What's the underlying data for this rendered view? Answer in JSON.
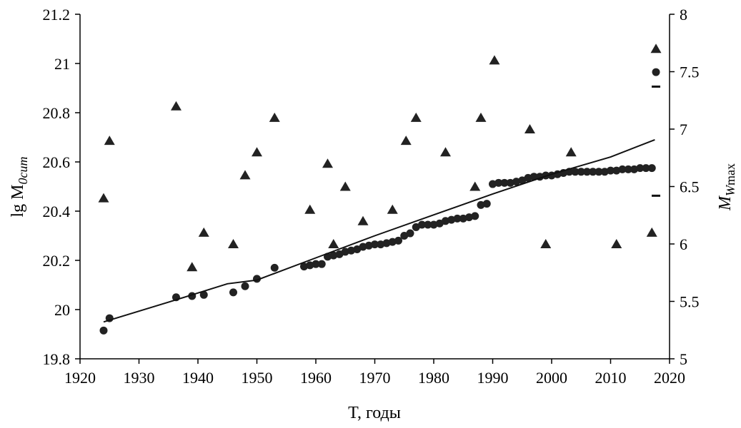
{
  "chart_data": {
    "type": "scatter",
    "xlabel": "T, годы",
    "ylabel_left": "lg M",
    "ylabel_left_sub": "0cum",
    "ylabel_right": "M",
    "ylabel_right_sub_italic": "W",
    "ylabel_right_sub": "max",
    "xlim": [
      1920,
      2020
    ],
    "ylim_left": [
      19.8,
      21.2
    ],
    "ylim_right": [
      5,
      8
    ],
    "x_ticks": [
      "1920",
      "1930",
      "1940",
      "1950",
      "1960",
      "1970",
      "1980",
      "1990",
      "2000",
      "2010",
      "2020"
    ],
    "y_left_ticks": [
      "19.8",
      "20",
      "20.2",
      "20.4",
      "20.6",
      "20.8",
      "21",
      "21.2"
    ],
    "y_right_ticks": [
      "5",
      "5.5",
      "6",
      "6.5",
      "7",
      "7.5",
      "8"
    ],
    "series": [
      {
        "axis": "right",
        "marker": "triangle",
        "points": [
          [
            1924,
            6.4
          ],
          [
            1925,
            6.9
          ],
          [
            1936.3,
            7.2
          ],
          [
            1939,
            5.8
          ],
          [
            1941,
            6.1
          ],
          [
            1946,
            6.0
          ],
          [
            1948,
            6.6
          ],
          [
            1950,
            6.8
          ],
          [
            1953,
            7.1
          ],
          [
            1959,
            6.3
          ],
          [
            1962,
            6.7
          ],
          [
            1963,
            6.0
          ],
          [
            1965,
            6.5
          ],
          [
            1968,
            6.2
          ],
          [
            1973,
            6.3
          ],
          [
            1975.3,
            6.9
          ],
          [
            1977,
            7.1
          ],
          [
            1982,
            6.8
          ],
          [
            1987,
            6.5
          ],
          [
            1988,
            7.1
          ],
          [
            1990.3,
            7.6
          ],
          [
            1996.3,
            7.0
          ],
          [
            1999,
            6.0
          ],
          [
            2003.3,
            6.8
          ],
          [
            2011,
            6.0
          ],
          [
            2017,
            6.1
          ],
          [
            2017.7,
            7.7
          ]
        ]
      },
      {
        "axis": "left",
        "marker": "circle",
        "points": [
          [
            1924,
            19.915
          ],
          [
            1925,
            19.965
          ],
          [
            1936.3,
            20.05
          ],
          [
            1939,
            20.055
          ],
          [
            1941,
            20.06
          ],
          [
            1946,
            20.07
          ],
          [
            1948,
            20.095
          ],
          [
            1950,
            20.125
          ],
          [
            1953,
            20.17
          ],
          [
            1958,
            20.175
          ],
          [
            1959,
            20.18
          ],
          [
            1960,
            20.185
          ],
          [
            1961,
            20.185
          ],
          [
            1962,
            20.215
          ],
          [
            1963,
            20.22
          ],
          [
            1964,
            20.225
          ],
          [
            1965,
            20.235
          ],
          [
            1966,
            20.24
          ],
          [
            1967,
            20.245
          ],
          [
            1968,
            20.255
          ],
          [
            1969,
            20.26
          ],
          [
            1970,
            20.265
          ],
          [
            1971,
            20.265
          ],
          [
            1972,
            20.27
          ],
          [
            1973,
            20.275
          ],
          [
            1974,
            20.28
          ],
          [
            1975,
            20.3
          ],
          [
            1976,
            20.31
          ],
          [
            1977,
            20.335
          ],
          [
            1978,
            20.345
          ],
          [
            1979,
            20.345
          ],
          [
            1980,
            20.345
          ],
          [
            1981,
            20.35
          ],
          [
            1982,
            20.36
          ],
          [
            1983,
            20.365
          ],
          [
            1984,
            20.37
          ],
          [
            1985,
            20.37
          ],
          [
            1986,
            20.375
          ],
          [
            1987,
            20.38
          ],
          [
            1988,
            20.425
          ],
          [
            1989,
            20.43
          ],
          [
            1990,
            20.51
          ],
          [
            1991,
            20.515
          ],
          [
            1992,
            20.515
          ],
          [
            1993,
            20.515
          ],
          [
            1994,
            20.52
          ],
          [
            1995,
            20.525
          ],
          [
            1996,
            20.535
          ],
          [
            1997,
            20.54
          ],
          [
            1998,
            20.54
          ],
          [
            1999,
            20.545
          ],
          [
            2000,
            20.545
          ],
          [
            2001,
            20.55
          ],
          [
            2002,
            20.555
          ],
          [
            2003,
            20.56
          ],
          [
            2004,
            20.56
          ],
          [
            2005,
            20.56
          ],
          [
            2006,
            20.56
          ],
          [
            2007,
            20.56
          ],
          [
            2008,
            20.56
          ],
          [
            2009,
            20.56
          ],
          [
            2010,
            20.565
          ],
          [
            2011,
            20.565
          ],
          [
            2012,
            20.57
          ],
          [
            2013,
            20.57
          ],
          [
            2014,
            20.57
          ],
          [
            2015,
            20.575
          ],
          [
            2016,
            20.575
          ],
          [
            2017,
            20.575
          ],
          [
            2017.7,
            20.965
          ]
        ]
      },
      {
        "axis": "left",
        "marker": "line",
        "points": [
          [
            1924,
            19.95
          ],
          [
            1935,
            20.03
          ],
          [
            1945,
            20.105
          ],
          [
            1950,
            20.12
          ],
          [
            1960,
            20.21
          ],
          [
            1970,
            20.3
          ],
          [
            1980,
            20.385
          ],
          [
            1990,
            20.47
          ],
          [
            2000,
            20.55
          ],
          [
            2010,
            20.62
          ],
          [
            2017.5,
            20.69
          ]
        ]
      },
      {
        "axis": "right",
        "marker": "dash",
        "points": [
          [
            2017.7,
            7.37
          ],
          [
            2017.7,
            6.42
          ]
        ]
      }
    ]
  }
}
